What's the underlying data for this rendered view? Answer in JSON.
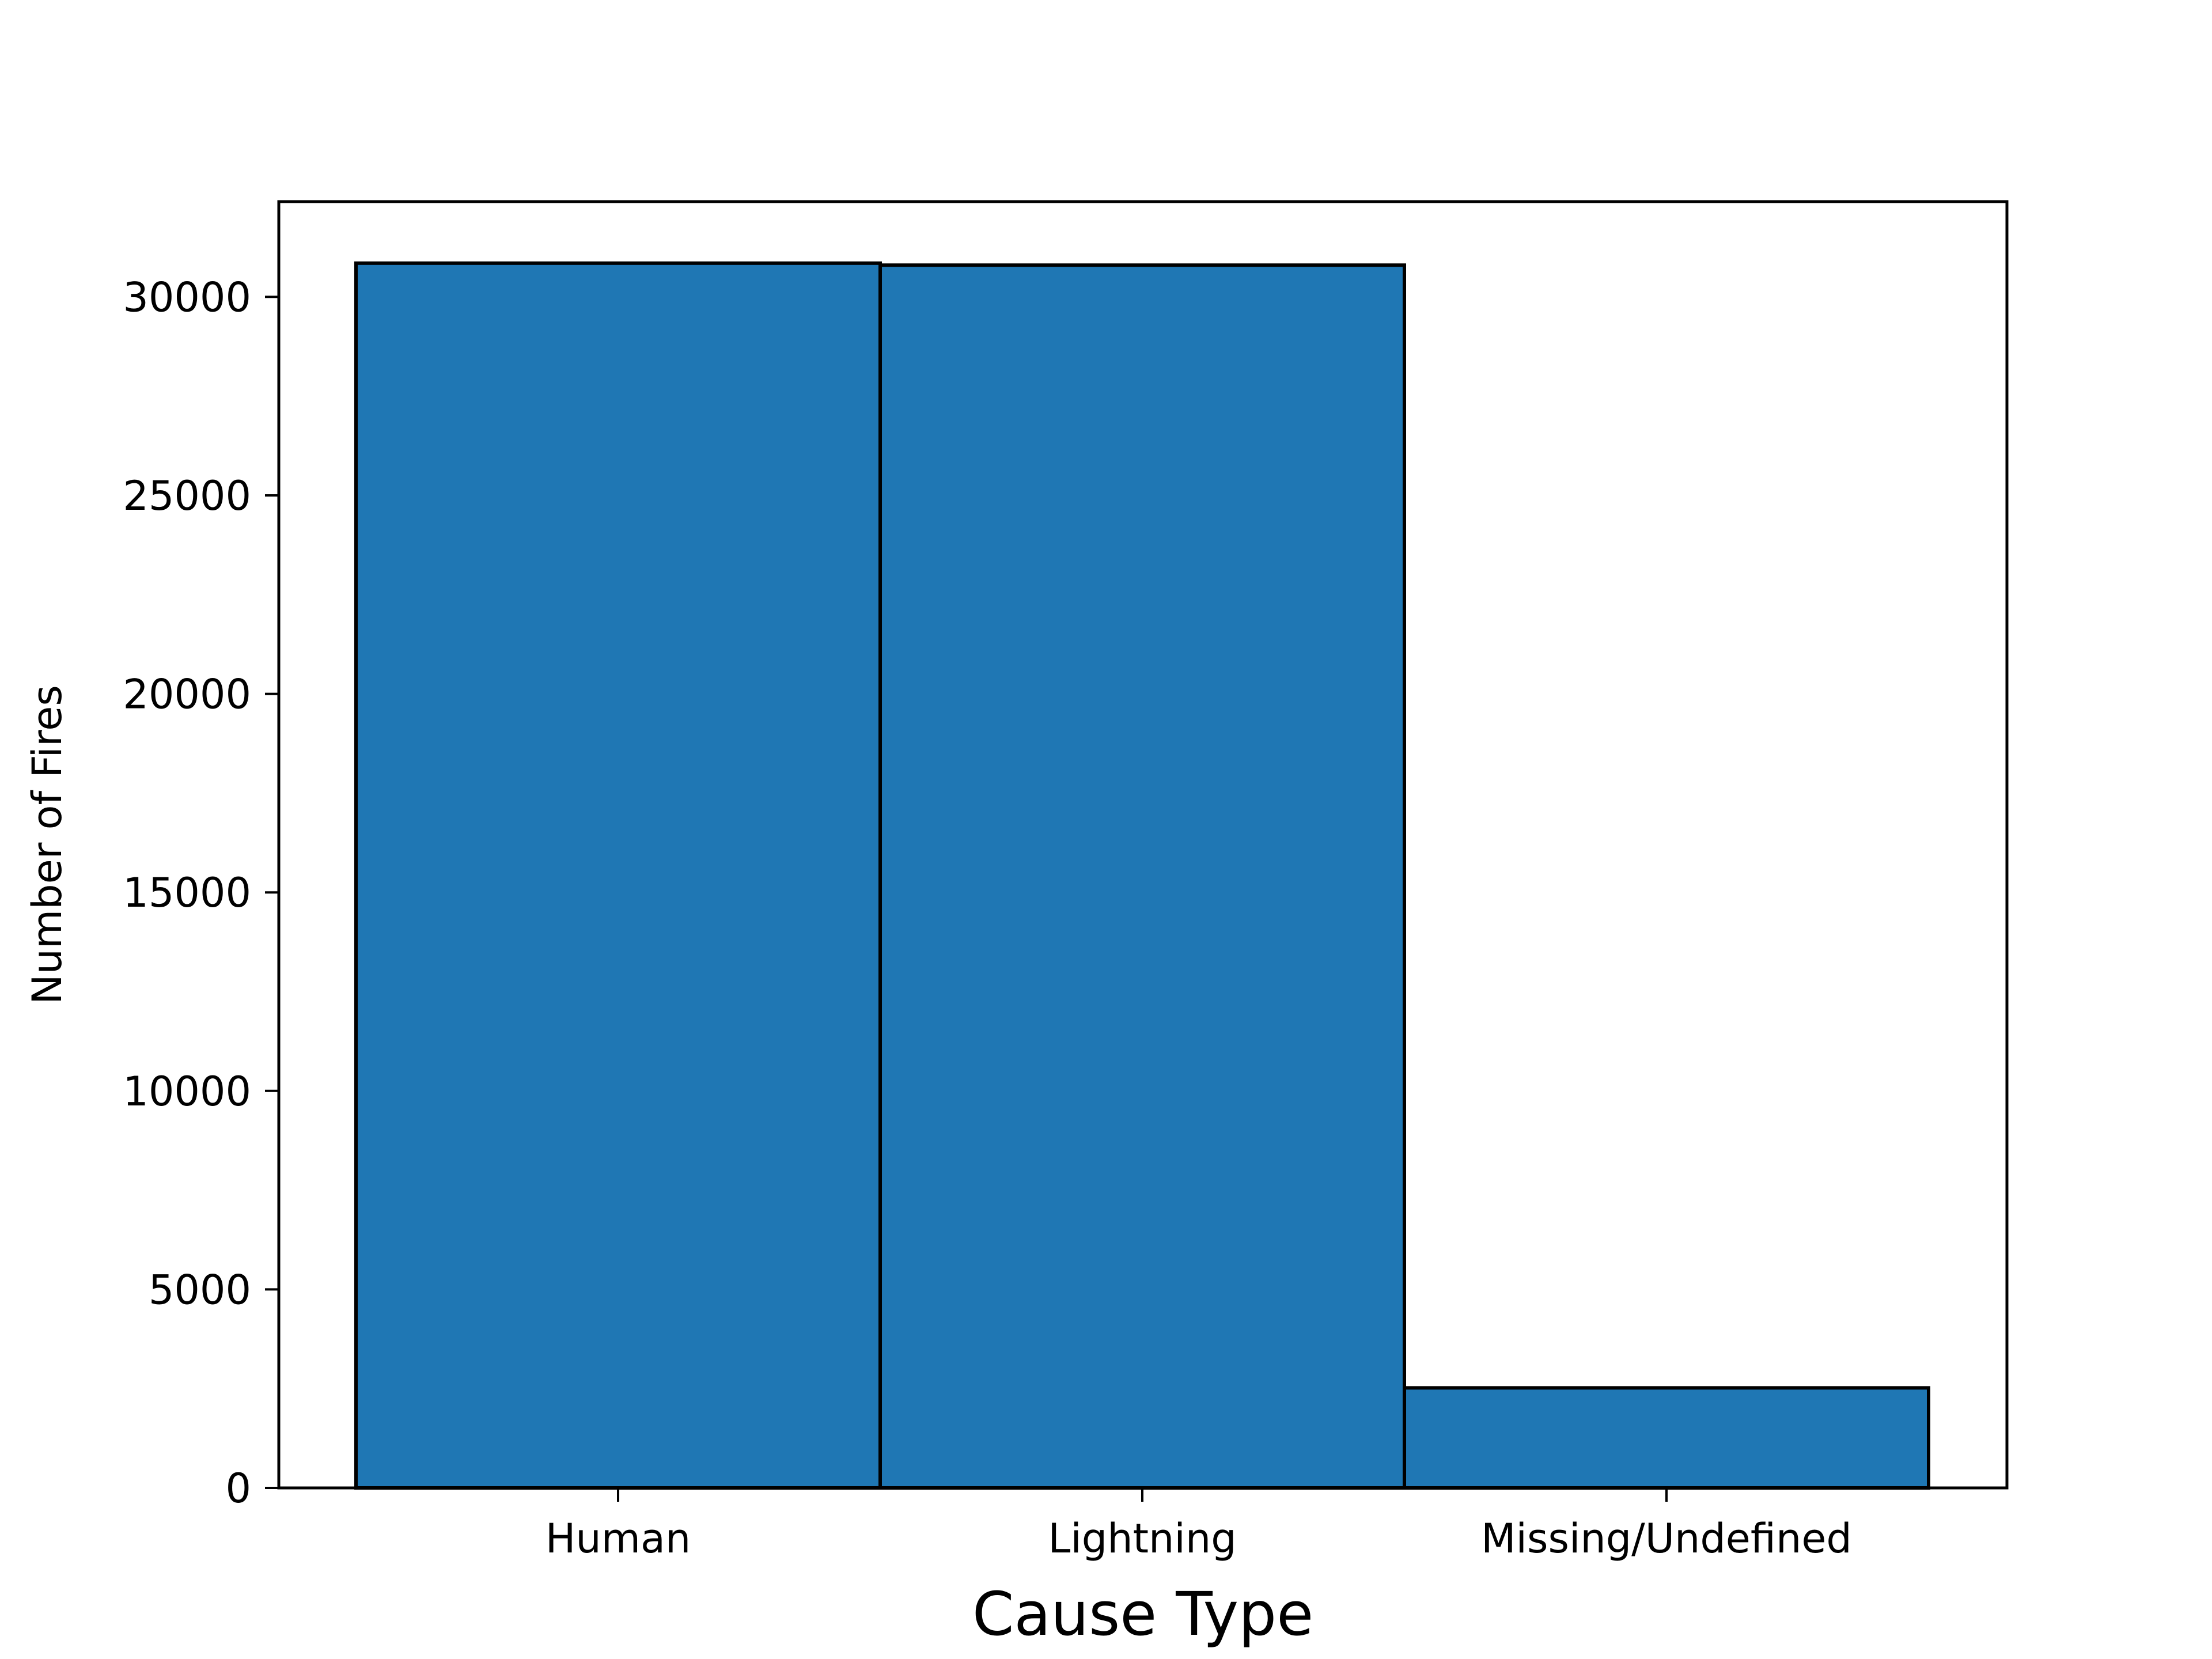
{
  "chart_data": {
    "type": "bar",
    "title": "",
    "xlabel": "Cause Type",
    "ylabel": "Number of Fires",
    "categories": [
      "Human",
      "Lightning",
      "Missing/Undefined"
    ],
    "values": [
      30850,
      30800,
      2520
    ],
    "ylim": [
      0,
      32400
    ],
    "yticks": [
      0,
      5000,
      10000,
      15000,
      20000,
      25000,
      30000
    ],
    "grid": false,
    "legend": "none",
    "colors": {
      "bar_fill": "#1f77b4",
      "bar_edge": "#000000",
      "axes": "#000000",
      "background": "#ffffff"
    }
  }
}
